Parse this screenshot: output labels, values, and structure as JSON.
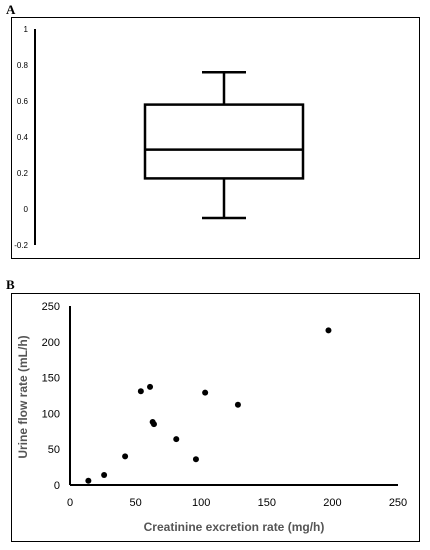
{
  "panels": {
    "a_label": "A",
    "b_label": "B"
  },
  "chart_data": [
    {
      "type": "box",
      "title": "",
      "xlabel": "",
      "ylabel": "",
      "ylim": [
        -0.2,
        1
      ],
      "yticks": [
        "1",
        "0.8",
        "0.6",
        "0.4",
        "0.2",
        "0",
        "-0.2"
      ],
      "ytick_values": [
        1,
        0.8,
        0.6,
        0.4,
        0.2,
        0,
        -0.2
      ],
      "whisker_low": -0.05,
      "q1": 0.17,
      "median": 0.33,
      "q3": 0.58,
      "whisker_high": 0.76,
      "grid": false,
      "colors": {
        "line": "#000000"
      }
    },
    {
      "type": "scatter",
      "title": "",
      "xlabel": "Creatinine excretion rate (mg/h)",
      "ylabel": "Urine flow rate (mL/h)",
      "xlim": [
        0,
        250
      ],
      "ylim": [
        0,
        250
      ],
      "xticks": [
        "0",
        "50",
        "100",
        "150",
        "200",
        "250"
      ],
      "xtick_values": [
        0,
        50,
        100,
        150,
        200,
        250
      ],
      "yticks": [
        "0",
        "50",
        "100",
        "150",
        "200",
        "250"
      ],
      "ytick_values": [
        0,
        50,
        100,
        150,
        200,
        250
      ],
      "grid": false,
      "points": [
        {
          "x": 14,
          "y": 6
        },
        {
          "x": 26,
          "y": 14
        },
        {
          "x": 42,
          "y": 40
        },
        {
          "x": 54,
          "y": 131
        },
        {
          "x": 61,
          "y": 137
        },
        {
          "x": 63,
          "y": 88
        },
        {
          "x": 64,
          "y": 85
        },
        {
          "x": 81,
          "y": 64
        },
        {
          "x": 96,
          "y": 36
        },
        {
          "x": 103,
          "y": 129
        },
        {
          "x": 128,
          "y": 112
        },
        {
          "x": 197,
          "y": 216
        }
      ],
      "colors": {
        "marker": "#000000"
      }
    }
  ]
}
